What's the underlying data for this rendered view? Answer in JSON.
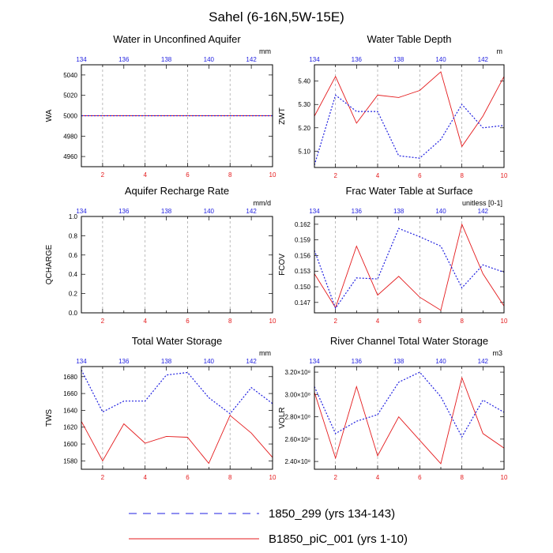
{
  "title": "Sahel (6-16N,5W-15E)",
  "colors": {
    "red": "#e41a1c",
    "blue": "#1f1fe0",
    "frame": "#000000",
    "grid": "#a0a0a0"
  },
  "legend": {
    "items": [
      {
        "label": "1850_299 (yrs 134-143)",
        "style": "dash",
        "color": "#1f1fe0"
      },
      {
        "label": "B1850_piC_001 (yrs 1-10)",
        "style": "solid",
        "color": "#e41a1c"
      }
    ]
  },
  "chart_data": [
    {
      "id": "wa",
      "type": "line",
      "title": "Water in Unconfined Aquifer",
      "ylabel": "WA",
      "units": "mm",
      "xlim": [
        1,
        10
      ],
      "xticks_bottom": [
        "2",
        "4",
        "6",
        "8",
        "10"
      ],
      "xticks_top": [
        "134",
        "136",
        "138",
        "140",
        "142"
      ],
      "ylim": [
        4950,
        5050
      ],
      "yticks": [
        "4960",
        "4980",
        "5000",
        "5020",
        "5040"
      ],
      "series": [
        {
          "name": "B1850_piC_001",
          "values": [
            5000,
            5000,
            5000,
            5000,
            5000,
            5000,
            5000,
            5000,
            5000,
            5000
          ]
        },
        {
          "name": "1850_299",
          "values": [
            5000,
            5000,
            5000,
            5000,
            5000,
            5000,
            5000,
            5000,
            5000,
            5000
          ]
        }
      ]
    },
    {
      "id": "zwt",
      "type": "line",
      "title": "Water Table Depth",
      "ylabel": "ZWT",
      "units": "m",
      "xlim": [
        1,
        10
      ],
      "xticks_bottom": [
        "2",
        "4",
        "6",
        "8",
        "10"
      ],
      "xticks_top": [
        "134",
        "136",
        "138",
        "140",
        "142"
      ],
      "ylim": [
        5.03,
        5.47
      ],
      "yticks": [
        "5.10",
        "5.20",
        "5.30",
        "5.40"
      ],
      "series": [
        {
          "name": "B1850_piC_001",
          "values": [
            5.25,
            5.42,
            5.22,
            5.34,
            5.33,
            5.36,
            5.44,
            5.12,
            5.25,
            5.42
          ]
        },
        {
          "name": "1850_299",
          "values": [
            5.04,
            5.34,
            5.27,
            5.27,
            5.08,
            5.07,
            5.15,
            5.3,
            5.2,
            5.21
          ]
        }
      ]
    },
    {
      "id": "qcharge",
      "type": "line",
      "title": "Aquifer Recharge Rate",
      "ylabel": "QCHARGE",
      "units": "mm/d",
      "xlim": [
        1,
        10
      ],
      "xticks_bottom": [
        "2",
        "4",
        "6",
        "8",
        "10"
      ],
      "xticks_top": [
        "134",
        "136",
        "138",
        "140",
        "142"
      ],
      "ylim": [
        0,
        1
      ],
      "yticks": [
        "0.0",
        "0.2",
        "0.4",
        "0.6",
        "0.8",
        "1.0"
      ],
      "series": []
    },
    {
      "id": "fcov",
      "type": "line",
      "title": "Frac Water Table at Surface",
      "ylabel": "FCOV",
      "units": "unitless [0-1]",
      "xlim": [
        1,
        10
      ],
      "xticks_bottom": [
        "2",
        "4",
        "6",
        "8",
        "10"
      ],
      "xticks_top": [
        "134",
        "136",
        "138",
        "140",
        "142"
      ],
      "ylim": [
        0.145,
        0.1635
      ],
      "yticks": [
        "0.147",
        "0.150",
        "0.153",
        "0.156",
        "0.159",
        "0.162"
      ],
      "series": [
        {
          "name": "B1850_piC_001",
          "values": [
            0.1525,
            0.146,
            0.1578,
            0.1484,
            0.152,
            0.148,
            0.1455,
            0.162,
            0.1525,
            0.1463
          ]
        },
        {
          "name": "1850_299",
          "values": [
            0.157,
            0.1459,
            0.1517,
            0.1515,
            0.1612,
            0.1596,
            0.1578,
            0.1498,
            0.1542,
            0.1528
          ]
        }
      ]
    },
    {
      "id": "tws",
      "type": "line",
      "title": "Total Water Storage",
      "ylabel": "TWS",
      "units": "mm",
      "xlim": [
        1,
        10
      ],
      "xticks_bottom": [
        "2",
        "4",
        "6",
        "8",
        "10"
      ],
      "xticks_top": [
        "134",
        "136",
        "138",
        "140",
        "142"
      ],
      "ylim": [
        1570,
        1692
      ],
      "yticks": [
        "1580",
        "1600",
        "1620",
        "1640",
        "1660",
        "1680"
      ],
      "series": [
        {
          "name": "B1850_piC_001",
          "values": [
            1627,
            1580,
            1624,
            1601,
            1609,
            1608,
            1577,
            1634,
            1613,
            1584
          ]
        },
        {
          "name": "1850_299",
          "values": [
            1688,
            1638,
            1651,
            1651,
            1682,
            1685,
            1655,
            1636,
            1667,
            1648
          ]
        }
      ]
    },
    {
      "id": "volr",
      "type": "line",
      "title": "River Channel Total Water Storage",
      "ylabel": "VOLR",
      "units": "m3",
      "xlim": [
        1,
        10
      ],
      "xticks_bottom": [
        "2",
        "4",
        "6",
        "8",
        "10"
      ],
      "xticks_top": [
        "134",
        "136",
        "138",
        "140",
        "142"
      ],
      "ylim": [
        233000000.0,
        325000000.0
      ],
      "yticks": [
        "2.40×10⁸",
        "2.60×10⁸",
        "2.80×10⁸",
        "3.00×10⁸",
        "3.20×10⁸"
      ],
      "series": [
        {
          "name": "B1850_piC_001",
          "values": [
            302000000.0,
            243000000.0,
            307000000.0,
            245000000.0,
            280000000.0,
            259000000.0,
            238000000.0,
            315000000.0,
            265000000.0,
            252000000.0
          ]
        },
        {
          "name": "1850_299",
          "values": [
            307000000.0,
            265000000.0,
            276000000.0,
            282000000.0,
            311000000.0,
            320000000.0,
            298000000.0,
            262000000.0,
            295000000.0,
            284000000.0
          ]
        }
      ]
    }
  ]
}
